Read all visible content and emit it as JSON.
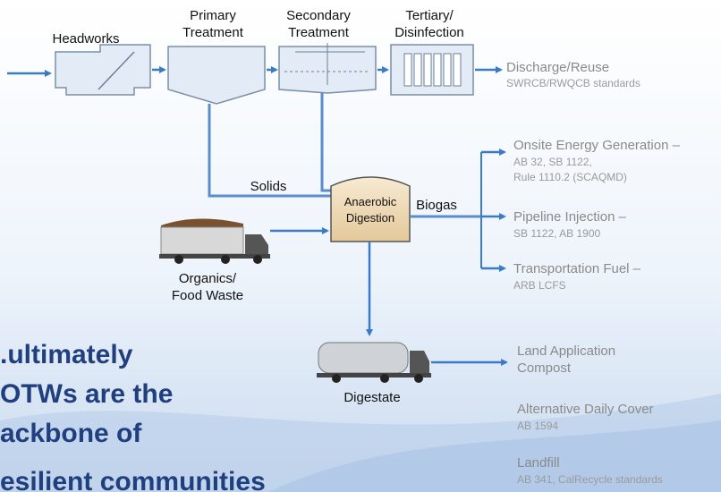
{
  "stages": [
    [
      "Headworks"
    ],
    [
      "Primary",
      "Treatment"
    ],
    [
      "Secondary",
      "Treatment"
    ],
    [
      "Tertiary/",
      "Disinfection"
    ]
  ],
  "discharge": {
    "title": "Discharge/Reuse",
    "note": "SWRCB/RWQCB standards"
  },
  "solids": "Solids",
  "digester": [
    "Anaerobic",
    "Digestion"
  ],
  "biogas": {
    "label": "Biogas",
    "uses": [
      {
        "title": "Onsite Energy Generation –",
        "notes": [
          "AB 32, SB 1122,",
          "Rule 1110.2 (SCAQMD)"
        ]
      },
      {
        "title": "Pipeline Injection –",
        "notes": [
          "SB 1122, AB 1900"
        ]
      },
      {
        "title": "Transportation Fuel –",
        "notes": [
          "ARB LCFS"
        ]
      }
    ]
  },
  "organics": [
    "Organics/",
    "Food Waste"
  ],
  "digestate": {
    "label": "Digestate",
    "uses": [
      {
        "title": [
          "Land Application",
          "Compost"
        ],
        "notes": []
      },
      {
        "title": [
          "Alternative Daily Cover"
        ],
        "notes": [
          "AB 1594"
        ]
      },
      {
        "title": [
          "Landfill"
        ],
        "notes": [
          "AB 341, CalRecycle standards"
        ]
      }
    ]
  },
  "headline": [
    ".ultimately",
    "OTWs are the",
    "ackbone of",
    "esilient communities"
  ]
}
